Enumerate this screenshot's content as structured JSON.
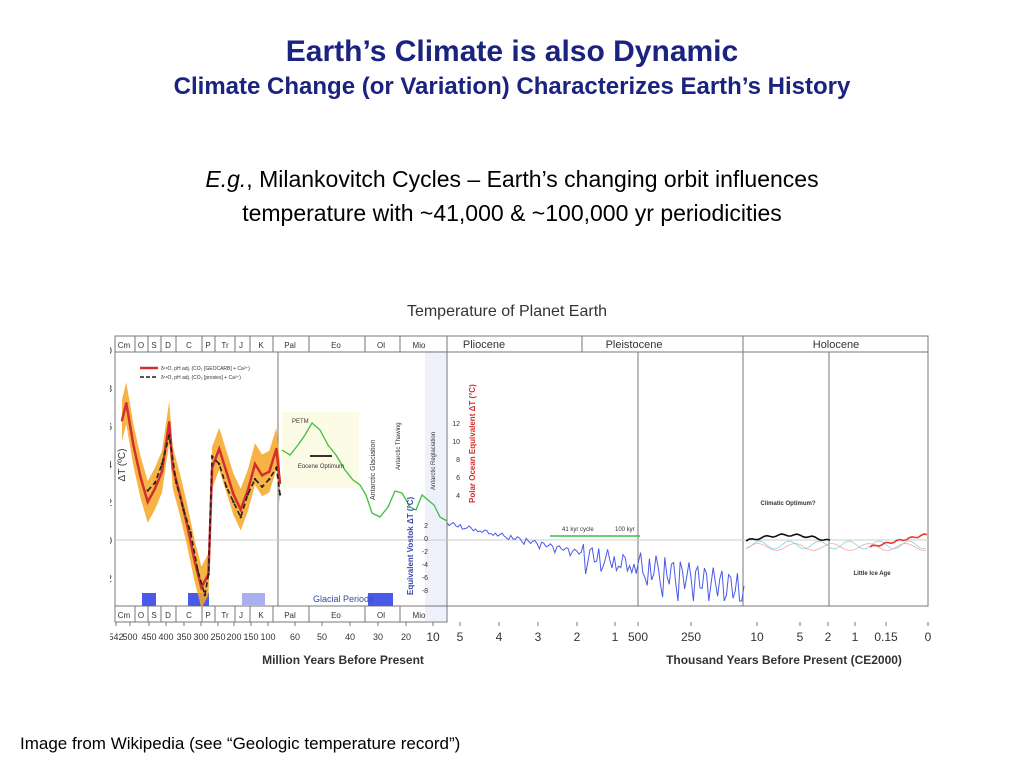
{
  "slide": {
    "title": "Earth’s Climate is also Dynamic",
    "subtitle": "Climate Change (or Variation) Characterizes Earth’s History",
    "body_prefix": "E.g.",
    "body_text_1": ", Milankovitch Cycles – Earth’s changing orbit influences",
    "body_text_2": "temperature with ~41,000 & ~100,000 yr periodicities",
    "caption": "Image from Wikipedia (see “Geologic temperature record”)"
  },
  "chart_data": {
    "type": "line",
    "title": "Temperature of Planet Earth",
    "xlabel": [
      "Million Years Before Present",
      "Thousand Years Before Present (CE2000)"
    ],
    "ylabel": "ΔT (ºC)",
    "ylim": [
      -4,
      10
    ],
    "yticks": [
      "10",
      "8",
      "6",
      "4",
      "2",
      "0",
      "-2"
    ],
    "periods_top": [
      "Cm",
      "O",
      "S",
      "D",
      "C",
      "P",
      "Tr",
      "J",
      "K",
      "Pal",
      "Eo",
      "Ol",
      "Mio",
      "Pliocene",
      "Pleistocene",
      "Holocene"
    ],
    "periods_bottom": [
      "Cm",
      "O",
      "S",
      "D",
      "C",
      "P",
      "Tr",
      "J",
      "K",
      "Pal",
      "Eo",
      "Ol",
      "Mio"
    ],
    "xticks": [
      "542",
      "500",
      "450",
      "400",
      "350",
      "300",
      "250",
      "200",
      "150",
      "100",
      "60",
      "50",
      "40",
      "30",
      "20",
      "10",
      "5",
      "4",
      "3",
      "2",
      "1",
      "500",
      "250",
      "10",
      "5",
      "2",
      "1",
      "0.15",
      "0"
    ],
    "legend": [
      "δ¹⁸O, pH adj. (CO₂ [GEOCARB] + Ca²⁺)",
      "δ¹⁸O, pH adj. (CO₂ [proxies] + Ca²⁺)"
    ],
    "annotations": {
      "petm": "PETM",
      "eocene_optimum": "Eocene Optimum",
      "antarctic_glaciation": "Antarctic Glaciation",
      "antarctic_thawing": "Antarctic Thawing",
      "antarctic_reglaciation": "Antarctic Reglaciation",
      "glacial_periods": "Glacial Periods",
      "polar_ocean": "Polar Ocean Equivalent ΔT (°C)",
      "vostok": "Equivalent Vostok ΔT (°C)",
      "cycle_41": "41 kyr cycle",
      "cycle_100": "100 kyr",
      "climatic_optimum": "Climatic Optimum?",
      "little_ice_age": "Little Ice Age"
    },
    "polar_ticks": [
      "12",
      "10",
      "8",
      "6",
      "4"
    ],
    "vostok_ticks": [
      "2",
      "0",
      "-2",
      "-4",
      "-6",
      "-8"
    ],
    "series": [
      {
        "name": "δ¹⁸O, pH adj. (CO₂ [GEOCARB] + Ca²⁺)",
        "color": "#d32f2f",
        "x": [
          542,
          530,
          510,
          490,
          470,
          450,
          430,
          410,
          400,
          380,
          360,
          340,
          320,
          300,
          290,
          270,
          250,
          230,
          210,
          190,
          170,
          150,
          130,
          110,
          100
        ],
        "y": [
          6.3,
          7.2,
          5.0,
          3.3,
          2.0,
          2.7,
          3.6,
          6.2,
          3.8,
          2.4,
          0.8,
          -1.0,
          -2.5,
          -1.8,
          3.8,
          4.8,
          3.6,
          2.4,
          1.6,
          2.6,
          4.0,
          3.4,
          3.6,
          4.8,
          3.0
        ]
      },
      {
        "name": "δ¹⁸O, pH adj. (CO₂ [proxies] + Ca²⁺)",
        "color": "#212121",
        "x": [
          470,
          450,
          430,
          410,
          390,
          370,
          350,
          330,
          310,
          300,
          290,
          270,
          250,
          230,
          210,
          190,
          170,
          150,
          130,
          110,
          100
        ],
        "y": [
          2.6,
          3.0,
          4.0,
          5.5,
          3.0,
          1.6,
          0.4,
          -1.6,
          -2.9,
          -1.8,
          4.4,
          4.0,
          2.8,
          2.0,
          1.2,
          2.4,
          3.2,
          2.8,
          3.2,
          3.8,
          2.4
        ]
      }
    ],
    "glacial_period_bands_ma": [
      [
        460,
        430
      ],
      [
        360,
        260
      ],
      [
        200,
        140
      ],
      [
        34,
        0
      ]
    ]
  }
}
